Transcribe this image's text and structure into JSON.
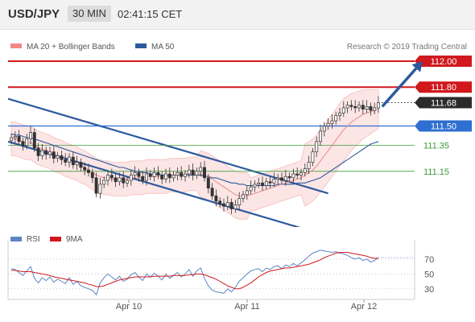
{
  "header": {
    "symbol": "USD/JPY",
    "timeframe": "30 MIN",
    "time": "02:41:15 CET"
  },
  "chart_data": {
    "type": "candlestick",
    "legend": [
      {
        "name": "MA 20 + Bollinger Bands",
        "color": "#f08a8a"
      },
      {
        "name": "MA 50",
        "color": "#2d5a9e"
      }
    ],
    "credit": "Research © 2019 Trading Central",
    "levels": [
      {
        "value": 112.0,
        "label": "112.00",
        "color": "#d0181d",
        "style": "solid-thick"
      },
      {
        "value": 111.8,
        "label": "111.80",
        "color": "#d0181d",
        "style": "solid-thick"
      },
      {
        "value": 111.68,
        "label": "111.68",
        "color": "#333333",
        "style": "dotted"
      },
      {
        "value": 111.5,
        "label": "111.50",
        "color": "#2e6fd1",
        "style": "solid"
      },
      {
        "value": 111.35,
        "label": "111.35",
        "color": "#3c9c3c",
        "style": "thin-label"
      },
      {
        "value": 111.15,
        "label": "111.15",
        "color": "#3c9c3c",
        "style": "thin-label"
      }
    ],
    "price_range": [
      110.72,
      112.05
    ],
    "x_labels": [
      "Apr 10",
      "Apr 11",
      "Apr 12"
    ],
    "channel": {
      "upper": [
        [
          0,
          111.71
        ],
        [
          82,
          110.98
        ]
      ],
      "lower": [
        [
          0,
          111.38
        ],
        [
          82,
          110.65
        ]
      ]
    },
    "forecast_arrow": {
      "from": [
        96,
        111.65
      ],
      "to": [
        106,
        112.0
      ]
    },
    "bars": 96,
    "close": [
      111.41,
      111.42,
      111.38,
      111.35,
      111.4,
      111.45,
      111.33,
      111.27,
      111.31,
      111.28,
      111.3,
      111.25,
      111.27,
      111.24,
      111.22,
      111.26,
      111.2,
      111.22,
      111.18,
      111.16,
      111.14,
      111.1,
      110.98,
      111.05,
      111.08,
      111.12,
      111.1,
      111.07,
      111.1,
      111.06,
      111.08,
      111.12,
      111.14,
      111.11,
      111.08,
      111.13,
      111.11,
      111.14,
      111.12,
      111.09,
      111.13,
      111.1,
      111.12,
      111.14,
      111.11,
      111.13,
      111.16,
      111.12,
      111.15,
      111.18,
      111.1,
      111.02,
      110.96,
      110.92,
      110.9,
      110.88,
      110.91,
      110.86,
      110.89,
      110.94,
      110.97,
      111.0,
      111.03,
      111.05,
      111.06,
      111.04,
      111.07,
      111.06,
      111.09,
      111.1,
      111.08,
      111.11,
      111.1,
      111.13,
      111.12,
      111.14,
      111.17,
      111.22,
      111.3,
      111.38,
      111.46,
      111.5,
      111.52,
      111.54,
      111.58,
      111.6,
      111.64,
      111.66,
      111.65,
      111.64,
      111.66,
      111.63,
      111.65,
      111.62,
      111.64,
      111.68
    ],
    "ma20": [
      111.4,
      111.4,
      111.39,
      111.38,
      111.37,
      111.37,
      111.35,
      111.33,
      111.32,
      111.31,
      111.3,
      111.28,
      111.27,
      111.26,
      111.24,
      111.23,
      111.22,
      111.21,
      111.19,
      111.18,
      111.16,
      111.14,
      111.12,
      111.11,
      111.1,
      111.1,
      111.09,
      111.09,
      111.09,
      111.09,
      111.09,
      111.1,
      111.1,
      111.1,
      111.1,
      111.11,
      111.11,
      111.11,
      111.11,
      111.11,
      111.11,
      111.12,
      111.12,
      111.12,
      111.12,
      111.12,
      111.13,
      111.13,
      111.13,
      111.13,
      111.12,
      111.11,
      111.09,
      111.07,
      111.05,
      111.03,
      111.01,
      110.99,
      110.97,
      110.96,
      110.96,
      110.96,
      110.97,
      110.98,
      110.99,
      111.0,
      111.01,
      111.02,
      111.03,
      111.04,
      111.05,
      111.06,
      111.07,
      111.08,
      111.09,
      111.1,
      111.12,
      111.14,
      111.16,
      111.19,
      111.23,
      111.27,
      111.31,
      111.35,
      111.39,
      111.43,
      111.47,
      111.5,
      111.53,
      111.55,
      111.57,
      111.59,
      111.6,
      111.61,
      111.62,
      111.63
    ],
    "ma50": [
      111.44,
      111.43,
      111.43,
      111.42,
      111.41,
      111.41,
      111.4,
      111.39,
      111.38,
      111.37,
      111.36,
      111.35,
      111.34,
      111.33,
      111.32,
      111.31,
      111.3,
      111.29,
      111.28,
      111.27,
      111.26,
      111.25,
      111.24,
      111.23,
      111.22,
      111.21,
      111.2,
      111.19,
      111.18,
      111.18,
      111.17,
      111.16,
      111.15,
      111.15,
      111.14,
      111.14,
      111.13,
      111.13,
      111.13,
      111.12,
      111.12,
      111.12,
      111.12,
      111.12,
      111.12,
      111.12,
      111.12,
      111.12,
      111.12,
      111.12,
      111.11,
      111.11,
      111.1,
      111.1,
      111.09,
      111.08,
      111.07,
      111.06,
      111.06,
      111.05,
      111.05,
      111.04,
      111.04,
      111.04,
      111.04,
      111.04,
      111.04,
      111.04,
      111.04,
      111.05,
      111.05,
      111.05,
      111.05,
      111.05,
      111.06,
      111.06,
      111.06,
      111.07,
      111.08,
      111.09,
      111.1,
      111.12,
      111.14,
      111.16,
      111.18,
      111.2,
      111.22,
      111.24,
      111.26,
      111.28,
      111.3,
      111.32,
      111.34,
      111.36,
      111.37,
      111.38
    ],
    "rsi": {
      "legend": [
        {
          "name": "RSI",
          "color": "#5b86c5"
        },
        {
          "name": "9MA",
          "color": "#d0181d"
        }
      ],
      "ticks": [
        70,
        50,
        30
      ],
      "range": [
        20,
        85
      ],
      "values": [
        57,
        56,
        52,
        48,
        54,
        60,
        44,
        38,
        45,
        41,
        46,
        39,
        43,
        40,
        37,
        45,
        36,
        40,
        34,
        32,
        30,
        28,
        22,
        38,
        45,
        50,
        46,
        42,
        47,
        40,
        43,
        49,
        52,
        46,
        41,
        50,
        46,
        51,
        47,
        42,
        50,
        44,
        48,
        52,
        46,
        50,
        56,
        47,
        54,
        58,
        44,
        34,
        28,
        26,
        25,
        24,
        30,
        26,
        32,
        40,
        45,
        50,
        54,
        56,
        57,
        53,
        58,
        56,
        60,
        61,
        57,
        62,
        60,
        64,
        61,
        65,
        69,
        74,
        78,
        80,
        82,
        81,
        80,
        79,
        80,
        78,
        77,
        75,
        72,
        70,
        72,
        68,
        70,
        66,
        68,
        72
      ],
      "ma9": [
        55,
        55,
        54,
        53,
        53,
        53,
        52,
        51,
        50,
        49,
        48,
        46,
        45,
        44,
        43,
        42,
        41,
        40,
        39,
        38,
        36,
        35,
        33,
        33,
        34,
        36,
        38,
        40,
        42,
        43,
        44,
        45,
        46,
        46,
        46,
        46,
        46,
        47,
        47,
        47,
        47,
        47,
        48,
        48,
        48,
        48,
        49,
        49,
        50,
        50,
        49,
        47,
        45,
        43,
        40,
        37,
        34,
        32,
        30,
        30,
        32,
        35,
        38,
        42,
        46,
        49,
        52,
        54,
        55,
        56,
        57,
        58,
        58,
        59,
        60,
        61,
        62,
        63,
        65,
        67,
        69,
        72,
        74,
        76,
        78,
        79,
        79,
        79,
        78,
        77,
        76,
        75,
        74,
        72,
        71,
        71
      ]
    }
  }
}
